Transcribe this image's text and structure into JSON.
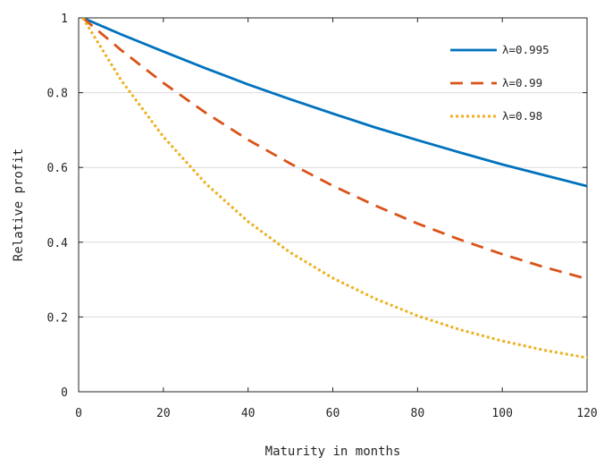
{
  "chart_data": {
    "type": "line",
    "title": "",
    "xlabel": "Maturity in months",
    "ylabel": "Relative profit",
    "xlim": [
      0,
      120
    ],
    "ylim": [
      0,
      1
    ],
    "xticks": [
      0,
      20,
      40,
      60,
      80,
      100,
      120
    ],
    "yticks": [
      0,
      0.2,
      0.4,
      0.6,
      0.8,
      1
    ],
    "ytick_labels": [
      "0",
      "0.2",
      "0.4",
      "0.6",
      "0.8",
      "1"
    ],
    "grid": "horizontal",
    "legend_position": "top-right",
    "x": [
      1,
      10,
      20,
      30,
      40,
      50,
      60,
      70,
      80,
      90,
      100,
      110,
      120
    ],
    "series": [
      {
        "name": "λ=0.995",
        "color": "#0072BD",
        "dash": "solid",
        "values": [
          1.0,
          0.956,
          0.91,
          0.865,
          0.822,
          0.782,
          0.744,
          0.707,
          0.673,
          0.64,
          0.608,
          0.579,
          0.55
        ]
      },
      {
        "name": "λ=0.99",
        "color": "#D95319",
        "dash": "dashed",
        "values": [
          1.0,
          0.914,
          0.826,
          0.746,
          0.674,
          0.61,
          0.551,
          0.498,
          0.45,
          0.407,
          0.368,
          0.333,
          0.302
        ]
      },
      {
        "name": "λ=0.98",
        "color": "#EDB120",
        "dash": "dotted",
        "values": [
          1.0,
          0.834,
          0.682,
          0.557,
          0.455,
          0.372,
          0.304,
          0.249,
          0.203,
          0.166,
          0.136,
          0.111,
          0.091
        ]
      }
    ]
  }
}
